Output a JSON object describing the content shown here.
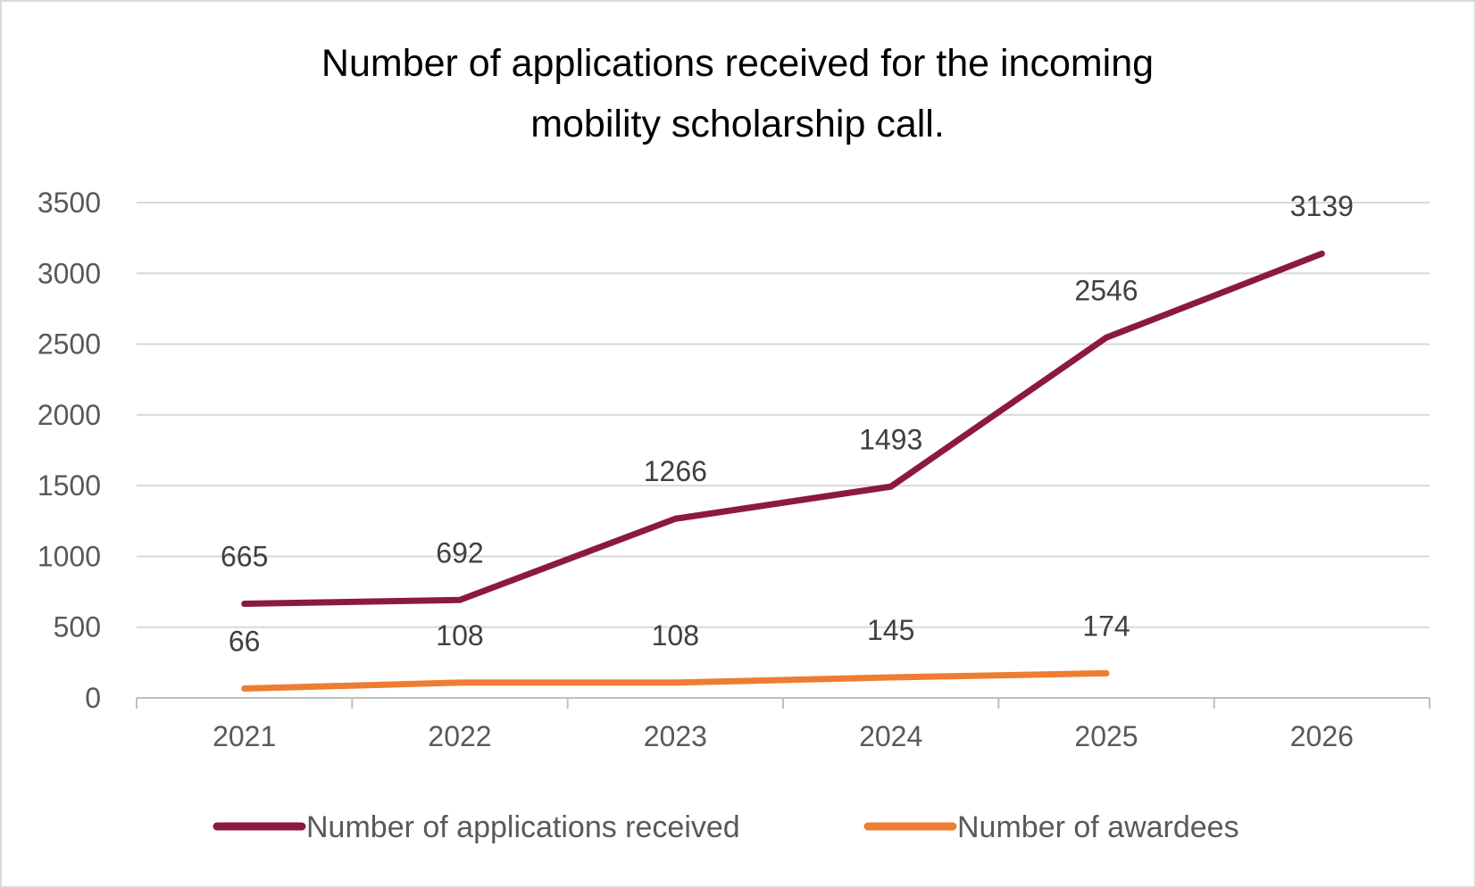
{
  "chart_data": {
    "type": "line",
    "title_lines": [
      "Number of applications received for the incoming",
      "mobility scholarship call."
    ],
    "xlabel": "",
    "ylabel": "",
    "categories": [
      "2021",
      "2022",
      "2023",
      "2024",
      "2025",
      "2026"
    ],
    "ylim": [
      0,
      3500
    ],
    "yticks": [
      0,
      500,
      1000,
      1500,
      2000,
      2500,
      3000,
      3500
    ],
    "grid": true,
    "legend_position": "bottom",
    "series": [
      {
        "name": "Number of applications received",
        "color": "#8B1A3C",
        "values": [
          665,
          692,
          1266,
          1493,
          2546,
          3139
        ]
      },
      {
        "name": "Number of awardees",
        "color": "#ED7D31",
        "values": [
          66,
          108,
          108,
          145,
          174,
          null
        ]
      }
    ]
  }
}
